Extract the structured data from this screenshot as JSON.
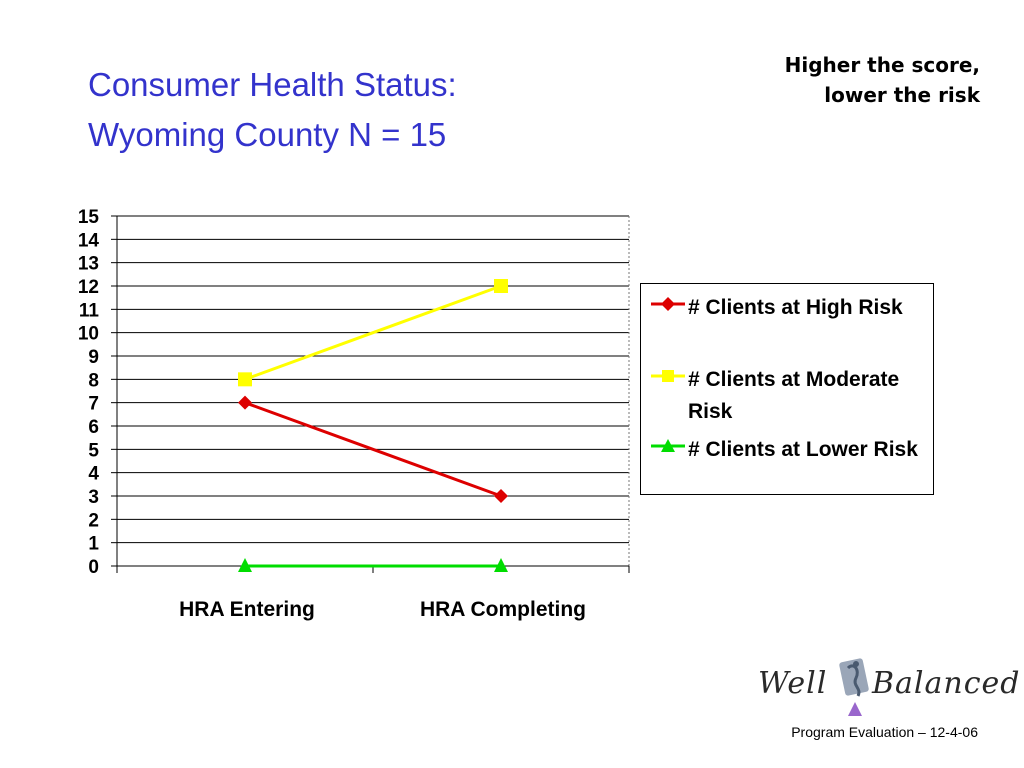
{
  "slide": {
    "title_lines": [
      "Consumer Health Status:",
      "Wyoming County N = 15"
    ],
    "note_lines": [
      "Higher the score,",
      "lower the risk"
    ],
    "footer": "Program Evaluation – 12-4-06"
  },
  "logo": {
    "word_left": "Well",
    "word_right": "Balanced"
  },
  "chart_data": {
    "type": "line",
    "title": "",
    "xlabel": "",
    "ylabel": "",
    "categories": [
      "HRA Entering",
      "HRA Completing"
    ],
    "ylim": [
      0,
      15
    ],
    "yticks": [
      "0",
      "1",
      "2",
      "3",
      "4",
      "5",
      "6",
      "7",
      "8",
      "9",
      "10",
      "11",
      "12",
      "13",
      "14",
      "15"
    ],
    "grid": true,
    "legend_position": "right",
    "series": [
      {
        "name": "# Clients at High Risk",
        "values": [
          7,
          3
        ],
        "color": "#dd0000",
        "marker": "diamond"
      },
      {
        "name": "# Clients at Moderate Risk",
        "values": [
          8,
          12
        ],
        "color": "#ffff00",
        "marker": "square"
      },
      {
        "name": "# Clients at Lower Risk",
        "values": [
          0,
          0
        ],
        "color": "#00dd00",
        "marker": "triangle"
      }
    ]
  }
}
